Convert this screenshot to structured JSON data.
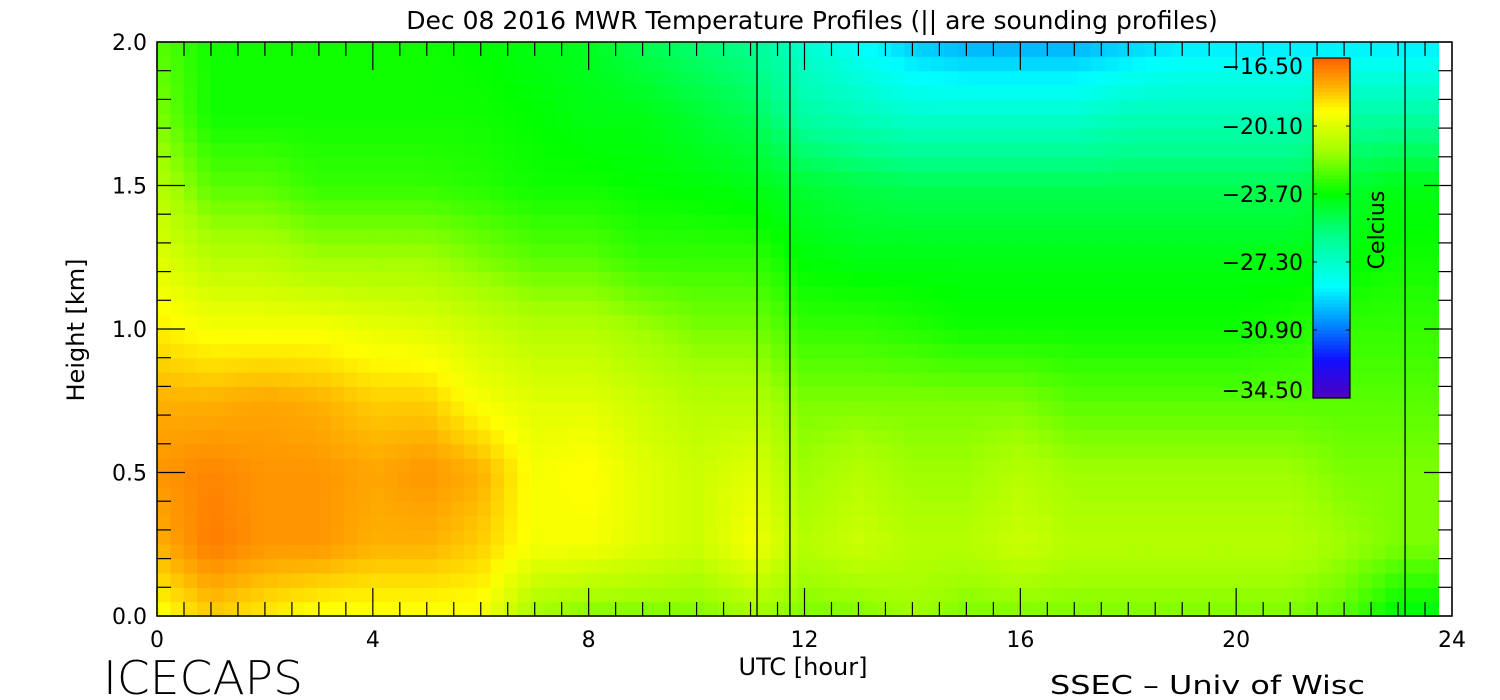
{
  "chart_data": {
    "type": "heatmap",
    "title": "Dec 08 2016 MWR Temperature Profiles (|| are sounding profiles)",
    "xlabel": "UTC [hour]",
    "ylabel": "Height [km]",
    "xlim": [
      0,
      24
    ],
    "ylim": [
      0,
      2.0
    ],
    "xticks": [
      "0",
      "4",
      "8",
      "12",
      "16",
      "20",
      "24"
    ],
    "xtick_values": [
      0,
      4,
      8,
      12,
      16,
      20,
      24
    ],
    "yticks": [
      "0.0",
      "0.5",
      "1.0",
      "1.5",
      "2.0"
    ],
    "ytick_values": [
      0,
      0.5,
      1.0,
      1.5,
      2.0
    ],
    "x_minor_step": 0.5,
    "y_minor_step": 0.1,
    "x": [
      0,
      1,
      2,
      3,
      4,
      5,
      6,
      7,
      8,
      9,
      10,
      11,
      12,
      13,
      14,
      15,
      16,
      17,
      18,
      19,
      20,
      21,
      22,
      23,
      23.75
    ],
    "y": [
      0,
      0.25,
      0.5,
      0.75,
      1.0,
      1.25,
      1.5,
      1.75,
      2.0
    ],
    "z": [
      [
        -19.5,
        -18.5,
        -19,
        -19.5,
        -19.5,
        -19.5,
        -19.5,
        -21.5,
        -22,
        -22,
        -22,
        -21.5,
        -22,
        -22,
        -21.5,
        -22,
        -22,
        -22,
        -22,
        -22,
        -22,
        -22,
        -22.5,
        -24,
        -24
      ],
      [
        -18,
        -17,
        -17.5,
        -17.5,
        -18,
        -18,
        -18.5,
        -19.5,
        -19.5,
        -20,
        -20.5,
        -19.5,
        -21,
        -20.5,
        -21,
        -21,
        -20.5,
        -21,
        -21,
        -21,
        -21,
        -21,
        -21.5,
        -22,
        -22
      ],
      [
        -17.5,
        -17.2,
        -17.5,
        -17.5,
        -17.8,
        -17.5,
        -18,
        -19.5,
        -19.2,
        -20,
        -20.5,
        -20,
        -21.5,
        -21,
        -21.5,
        -21.5,
        -21,
        -21.5,
        -21.5,
        -21.5,
        -21.5,
        -21.5,
        -22,
        -22,
        -22
      ],
      [
        -18,
        -18,
        -17.8,
        -18,
        -18.5,
        -18.5,
        -19.5,
        -20,
        -20,
        -20.5,
        -21,
        -21,
        -22,
        -22,
        -22,
        -22,
        -22,
        -22.5,
        -22.5,
        -22.5,
        -22.5,
        -22.5,
        -22.5,
        -22.5,
        -22.5
      ],
      [
        -19,
        -19.5,
        -19.5,
        -19.5,
        -19.8,
        -20,
        -20.5,
        -21,
        -21,
        -21.5,
        -22,
        -22,
        -23,
        -23,
        -23.2,
        -23.5,
        -23.5,
        -23.5,
        -23.5,
        -23.5,
        -23.5,
        -23.3,
        -23,
        -23,
        -23
      ],
      [
        -20,
        -21,
        -21,
        -21.5,
        -21.5,
        -21.5,
        -22,
        -22.5,
        -22.5,
        -23,
        -23,
        -23,
        -23.8,
        -24,
        -24,
        -24,
        -24,
        -24,
        -24,
        -24,
        -24,
        -24,
        -23.8,
        -23.5,
        -23.5
      ],
      [
        -21,
        -22.5,
        -22.5,
        -23,
        -23,
        -23,
        -23.2,
        -23.5,
        -23.5,
        -23.7,
        -23.8,
        -24,
        -24.5,
        -24.8,
        -25,
        -25,
        -25,
        -25,
        -25,
        -25,
        -25,
        -25,
        -24.5,
        -24,
        -24
      ],
      [
        -22,
        -23.5,
        -23.5,
        -23.5,
        -23.5,
        -23.5,
        -23.5,
        -23.7,
        -24,
        -24,
        -24.5,
        -25,
        -26.5,
        -27,
        -27.5,
        -27.5,
        -27.5,
        -27.5,
        -27,
        -27,
        -27,
        -27,
        -26.5,
        -26.5,
        -26.5
      ],
      [
        -22.5,
        -23.5,
        -23.5,
        -23.5,
        -23.5,
        -23.5,
        -23.7,
        -24,
        -24.2,
        -25,
        -25.5,
        -26,
        -27.5,
        -28.5,
        -29.5,
        -30,
        -30,
        -30,
        -29.5,
        -29,
        -29,
        -29,
        -29,
        -29,
        -29
      ]
    ],
    "sounding_profile_times": [
      11.12,
      11.73,
      23.13
    ],
    "colorbar": {
      "label": "Celcius",
      "range": [
        -34.5,
        -16.5
      ],
      "ticks": [
        "-16.50",
        "-20.10",
        "-23.70",
        "-27.30",
        "-30.90",
        "-34.50"
      ],
      "tick_values": [
        -16.5,
        -20.1,
        -23.7,
        -27.3,
        -30.9,
        -34.5
      ],
      "stops": [
        {
          "v": -34.5,
          "c": "#5000c0"
        },
        {
          "v": -32.5,
          "c": "#1010ff"
        },
        {
          "v": -30.5,
          "c": "#0090ff"
        },
        {
          "v": -28.6,
          "c": "#00ffff"
        },
        {
          "v": -26.0,
          "c": "#00ff90"
        },
        {
          "v": -23.7,
          "c": "#00ff00"
        },
        {
          "v": -21.5,
          "c": "#a0ff00"
        },
        {
          "v": -19.3,
          "c": "#ffff00"
        },
        {
          "v": -18.0,
          "c": "#ffb000"
        },
        {
          "v": -16.5,
          "c": "#ff6000"
        }
      ]
    }
  },
  "footer": {
    "left": "ICECAPS",
    "right": "SSEC – Univ of Wisc"
  }
}
